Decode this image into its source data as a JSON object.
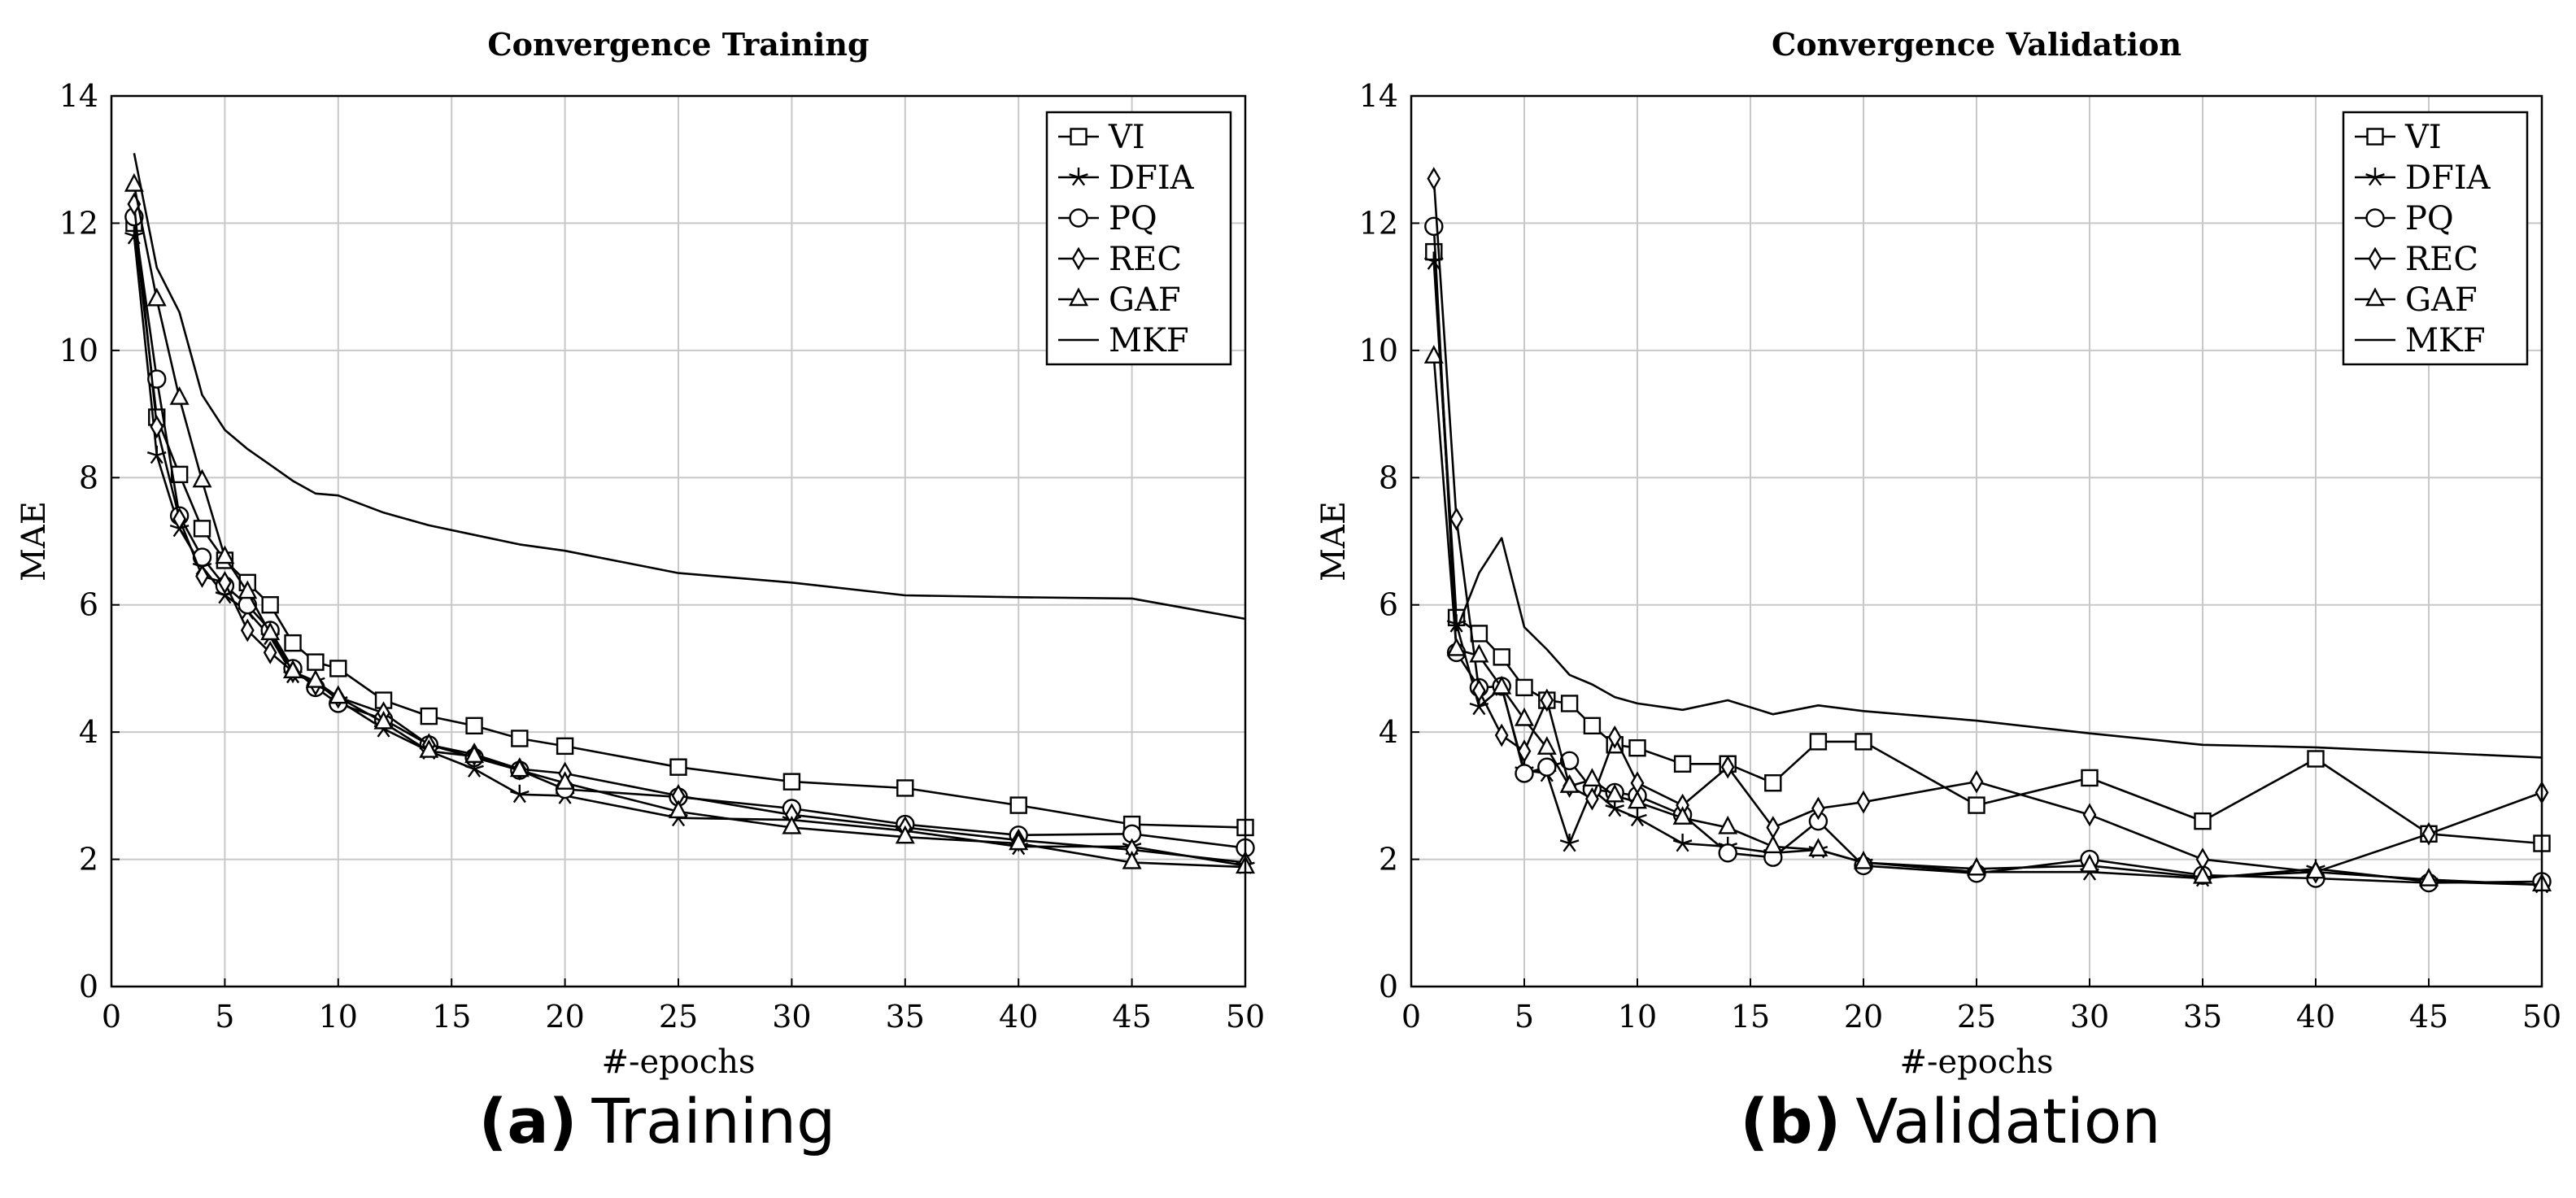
{
  "figure": {
    "caption_a": {
      "letter": "(a)",
      "text": "Training"
    },
    "caption_b": {
      "letter": "(b)",
      "text": "Validation"
    }
  },
  "chart_data": [
    {
      "type": "line",
      "title": "Convergence Training",
      "xlabel": "#-epochs",
      "ylabel": "MAE",
      "xlim": [
        0,
        50
      ],
      "ylim": [
        0,
        14
      ],
      "xticks": [
        0,
        5,
        10,
        15,
        20,
        25,
        30,
        35,
        40,
        45,
        50
      ],
      "yticks": [
        0,
        2,
        4,
        6,
        8,
        10,
        12,
        14
      ],
      "grid": true,
      "legend_position": "top-right",
      "series": [
        {
          "name": "VI",
          "marker": "square",
          "x": [
            1,
            2,
            3,
            4,
            5,
            6,
            7,
            8,
            9,
            10,
            12,
            14,
            16,
            18,
            20,
            25,
            30,
            35,
            40,
            45,
            50
          ],
          "y": [
            12.0,
            8.95,
            8.05,
            7.2,
            6.7,
            6.35,
            6.0,
            5.4,
            5.1,
            5.0,
            4.5,
            4.25,
            4.1,
            3.9,
            3.78,
            3.45,
            3.22,
            3.12,
            2.85,
            2.55,
            2.5
          ]
        },
        {
          "name": "DFIA",
          "marker": "star",
          "x": [
            1,
            2,
            3,
            4,
            5,
            6,
            7,
            8,
            9,
            10,
            12,
            14,
            16,
            18,
            20,
            25,
            30,
            35,
            40,
            45,
            50
          ],
          "y": [
            11.8,
            8.35,
            7.2,
            6.6,
            6.15,
            5.9,
            5.5,
            4.9,
            4.8,
            4.5,
            4.05,
            3.7,
            3.42,
            3.02,
            3.0,
            2.65,
            2.62,
            2.45,
            2.2,
            2.2,
            1.9
          ]
        },
        {
          "name": "PQ",
          "marker": "circle",
          "x": [
            1,
            2,
            3,
            4,
            5,
            6,
            7,
            8,
            9,
            10,
            12,
            14,
            16,
            18,
            20,
            25,
            30,
            35,
            40,
            45,
            50
          ],
          "y": [
            12.1,
            9.55,
            7.4,
            6.75,
            6.3,
            6.0,
            5.6,
            5.0,
            4.7,
            4.45,
            4.2,
            3.8,
            3.6,
            3.4,
            3.1,
            2.98,
            2.8,
            2.55,
            2.38,
            2.4,
            2.18
          ]
        },
        {
          "name": "REC",
          "marker": "diamond",
          "x": [
            1,
            2,
            3,
            4,
            5,
            6,
            7,
            8,
            9,
            10,
            12,
            14,
            16,
            18,
            20,
            25,
            30,
            35,
            40,
            45,
            50
          ],
          "y": [
            12.3,
            8.8,
            7.35,
            6.45,
            6.35,
            5.6,
            5.25,
            4.95,
            4.75,
            4.55,
            4.3,
            3.8,
            3.65,
            3.42,
            3.35,
            3.0,
            2.7,
            2.5,
            2.3,
            2.15,
            1.95
          ]
        },
        {
          "name": "GAF",
          "marker": "triangle",
          "x": [
            1,
            2,
            3,
            4,
            5,
            6,
            7,
            8,
            9,
            10,
            12,
            14,
            16,
            18,
            20,
            25,
            30,
            35,
            40,
            45,
            50
          ],
          "y": [
            12.6,
            10.8,
            9.25,
            7.95,
            6.75,
            6.2,
            5.55,
            4.95,
            4.8,
            4.55,
            4.15,
            3.7,
            3.62,
            3.4,
            3.2,
            2.75,
            2.5,
            2.35,
            2.25,
            1.95,
            1.88
          ]
        },
        {
          "name": "MKF",
          "marker": "none",
          "x": [
            1,
            2,
            3,
            4,
            5,
            6,
            7,
            8,
            9,
            10,
            12,
            14,
            16,
            18,
            20,
            25,
            30,
            35,
            40,
            45,
            50
          ],
          "y": [
            13.1,
            11.3,
            10.6,
            9.3,
            8.75,
            8.45,
            8.2,
            7.95,
            7.75,
            7.72,
            7.45,
            7.25,
            7.1,
            6.95,
            6.85,
            6.5,
            6.35,
            6.15,
            6.12,
            6.1,
            5.78
          ]
        }
      ]
    },
    {
      "type": "line",
      "title": "Convergence Validation",
      "xlabel": "#-epochs",
      "ylabel": "MAE",
      "xlim": [
        0,
        50
      ],
      "ylim": [
        0,
        14
      ],
      "xticks": [
        0,
        5,
        10,
        15,
        20,
        25,
        30,
        35,
        40,
        45,
        50
      ],
      "yticks": [
        0,
        2,
        4,
        6,
        8,
        10,
        12,
        14
      ],
      "grid": true,
      "legend_position": "top-right",
      "series": [
        {
          "name": "VI",
          "marker": "square",
          "x": [
            1,
            2,
            3,
            4,
            5,
            6,
            7,
            8,
            9,
            10,
            12,
            14,
            16,
            18,
            20,
            25,
            30,
            35,
            40,
            45,
            50
          ],
          "y": [
            11.55,
            5.8,
            5.55,
            5.18,
            4.7,
            4.5,
            4.45,
            4.1,
            3.8,
            3.75,
            3.5,
            3.5,
            3.2,
            3.85,
            3.85,
            2.85,
            3.28,
            2.6,
            3.58,
            2.4,
            2.25
          ]
        },
        {
          "name": "DFIA",
          "marker": "star",
          "x": [
            1,
            2,
            3,
            4,
            5,
            6,
            7,
            8,
            9,
            10,
            12,
            14,
            16,
            18,
            20,
            25,
            30,
            35,
            40,
            45,
            50
          ],
          "y": [
            11.4,
            5.7,
            4.4,
            4.7,
            3.4,
            3.35,
            2.25,
            3.1,
            2.8,
            2.65,
            2.25,
            2.2,
            2.1,
            2.15,
            1.95,
            1.8,
            1.8,
            1.7,
            1.85,
            1.65,
            1.6
          ]
        },
        {
          "name": "PQ",
          "marker": "circle",
          "x": [
            1,
            2,
            3,
            4,
            5,
            6,
            7,
            8,
            9,
            10,
            12,
            14,
            16,
            18,
            20,
            25,
            30,
            35,
            40,
            45,
            50
          ],
          "y": [
            11.95,
            5.25,
            4.7,
            4.72,
            3.35,
            3.45,
            3.55,
            3.1,
            3.05,
            3.0,
            2.7,
            2.1,
            2.03,
            2.6,
            1.9,
            1.78,
            2.0,
            1.75,
            1.7,
            1.63,
            1.65
          ]
        },
        {
          "name": "REC",
          "marker": "diamond",
          "x": [
            1,
            2,
            3,
            4,
            5,
            6,
            7,
            8,
            9,
            10,
            12,
            14,
            16,
            18,
            20,
            25,
            30,
            35,
            40,
            45,
            50
          ],
          "y": [
            12.7,
            7.35,
            4.65,
            3.95,
            3.7,
            4.5,
            3.15,
            2.95,
            3.92,
            3.2,
            2.85,
            3.45,
            2.5,
            2.8,
            2.9,
            3.22,
            2.7,
            2.0,
            1.8,
            2.4,
            3.05
          ]
        },
        {
          "name": "GAF",
          "marker": "triangle",
          "x": [
            1,
            2,
            3,
            4,
            5,
            6,
            7,
            8,
            9,
            10,
            12,
            14,
            16,
            18,
            20,
            25,
            30,
            35,
            40,
            45,
            50
          ],
          "y": [
            9.9,
            5.3,
            5.2,
            4.7,
            4.2,
            3.75,
            3.15,
            3.25,
            3.0,
            2.9,
            2.65,
            2.5,
            2.2,
            2.15,
            1.95,
            1.85,
            1.9,
            1.72,
            1.8,
            1.68,
            1.6
          ]
        },
        {
          "name": "MKF",
          "marker": "none",
          "x": [
            1,
            2,
            3,
            4,
            5,
            6,
            7,
            8,
            9,
            10,
            12,
            14,
            16,
            18,
            20,
            25,
            30,
            35,
            40,
            45,
            50
          ],
          "y": [
            11.5,
            5.6,
            6.5,
            7.05,
            5.65,
            5.3,
            4.9,
            4.75,
            4.55,
            4.45,
            4.35,
            4.5,
            4.28,
            4.42,
            4.33,
            4.18,
            3.98,
            3.8,
            3.76,
            3.68,
            3.6
          ]
        }
      ]
    }
  ]
}
